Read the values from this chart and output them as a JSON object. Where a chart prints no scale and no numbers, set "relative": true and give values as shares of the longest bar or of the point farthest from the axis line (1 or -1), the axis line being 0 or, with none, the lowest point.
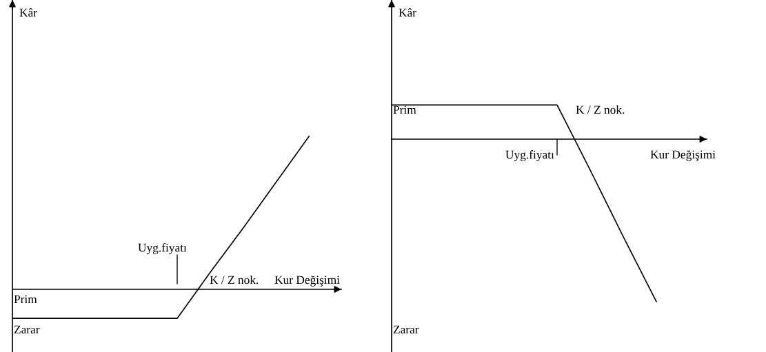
{
  "chart_data": [
    {
      "type": "line",
      "relative": true,
      "xlabel": "Kur Değişimi",
      "categories": [
        null,
        null,
        null,
        null,
        null,
        null,
        null,
        null,
        null,
        null
      ],
      "series": [
        {
          "color": "#000000",
          "values": [
            -0.19,
            -0.19,
            -0.19,
            -0.19,
            -0.19,
            -0.19,
            0.11,
            0.4,
            0.7,
            1
          ]
        }
      ],
      "annotations": [
        "Kâr",
        "Uyg.fiyatı",
        "K / Z nok.",
        "Prim",
        "Zarar"
      ]
    },
    {
      "type": "line",
      "relative": true,
      "xlabel": "Kur Değişimi",
      "categories": [
        null,
        null,
        null,
        null,
        null,
        null,
        null,
        null,
        null
      ],
      "series": [
        {
          "color": "#000000",
          "values": [
            0.21,
            0.21,
            0.21,
            0.21,
            0.21,
            0.21,
            -0.19,
            -0.6,
            -1
          ]
        }
      ],
      "annotations": [
        "Kâr",
        "Uyg.fiyatı",
        "K / Z nok.",
        "Prim",
        "Zarar"
      ]
    }
  ]
}
